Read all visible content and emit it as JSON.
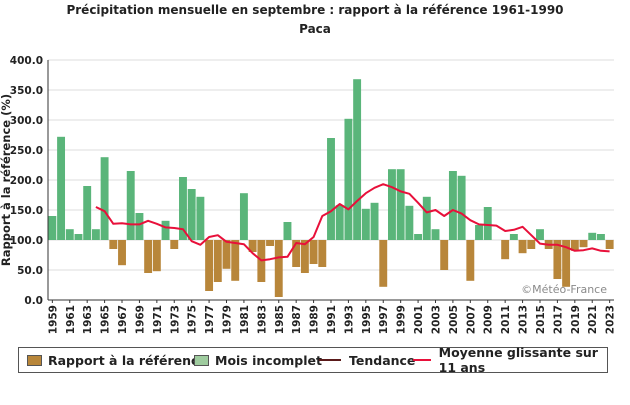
{
  "chart_data": {
    "type": "bar",
    "title": "Précipitation mensuelle en septembre : rapport à la référence 1961-1990",
    "subtitle": "Paca",
    "ylabel": "Rapport à la référence (%)",
    "ylim": [
      0,
      400
    ],
    "yticks": [
      "0.0",
      "50.0",
      "100.0",
      "150.0",
      "200.0",
      "250.0",
      "300.0",
      "350.0",
      "400.0"
    ],
    "baseline": 100,
    "years": [
      1959,
      1960,
      1961,
      1962,
      1963,
      1964,
      1965,
      1966,
      1967,
      1968,
      1969,
      1970,
      1971,
      1972,
      1973,
      1974,
      1975,
      1976,
      1977,
      1978,
      1979,
      1980,
      1981,
      1982,
      1983,
      1984,
      1985,
      1986,
      1987,
      1988,
      1989,
      1990,
      1991,
      1992,
      1993,
      1994,
      1995,
      1996,
      1997,
      1998,
      1999,
      2000,
      2001,
      2002,
      2003,
      2004,
      2005,
      2006,
      2007,
      2008,
      2009,
      2010,
      2011,
      2012,
      2013,
      2014,
      2015,
      2016,
      2017,
      2018,
      2019,
      2020,
      2021,
      2022,
      2023
    ],
    "xtick_labels": [
      "1959",
      "1961",
      "1963",
      "1965",
      "1967",
      "1969",
      "1971",
      "1973",
      "1975",
      "1977",
      "1979",
      "1981",
      "1983",
      "1985",
      "1987",
      "1989",
      "1991",
      "1993",
      "1995",
      "1997",
      "1999",
      "2001",
      "2003",
      "2005",
      "2007",
      "2009",
      "2011",
      "2013",
      "2015",
      "2017",
      "2019",
      "2021",
      "2023"
    ],
    "values": [
      140,
      272,
      118,
      110,
      190,
      118,
      238,
      85,
      58,
      215,
      145,
      45,
      48,
      132,
      85,
      205,
      185,
      172,
      15,
      30,
      52,
      32,
      178,
      80,
      30,
      90,
      5,
      130,
      55,
      45,
      60,
      55,
      270,
      158,
      302,
      368,
      152,
      162,
      22,
      218,
      218,
      157,
      110,
      172,
      118,
      50,
      215,
      207,
      32,
      125,
      155,
      100,
      68,
      110,
      78,
      85,
      118,
      85,
      35,
      22,
      82,
      88,
      112,
      110,
      85
    ],
    "moving_average_11y": {
      "name": "Moyenne glissante sur 11 ans",
      "start_year": 1964,
      "values": [
        155,
        148,
        127,
        128,
        126,
        126,
        132,
        127,
        121,
        120,
        118,
        98,
        92,
        105,
        108,
        97,
        95,
        93,
        78,
        66,
        68,
        71,
        72,
        95,
        93,
        105,
        140,
        148,
        160,
        151,
        165,
        178,
        187,
        193,
        188,
        181,
        177,
        162,
        146,
        150,
        140,
        150,
        144,
        133,
        126,
        125,
        124,
        115,
        117,
        122,
        108,
        94,
        92,
        92,
        88,
        82,
        83,
        86,
        82,
        81
      ]
    },
    "legend": [
      {
        "label": "Rapport à la référence",
        "kind": "swatch",
        "color": "#b8863a"
      },
      {
        "label": "Mois incomplet",
        "kind": "swatch",
        "color": "#9fcc9f"
      },
      {
        "label": "Tendance",
        "kind": "line",
        "color": "#5a1a1a"
      },
      {
        "label": "Moyenne glissante sur 11 ans",
        "kind": "line",
        "color": "#e8103a"
      }
    ],
    "watermark": "©Météo-France",
    "colors": {
      "above": "#5ab57a",
      "below": "#b8863a",
      "average": "#e8103a",
      "grid": "#dddddd"
    }
  }
}
